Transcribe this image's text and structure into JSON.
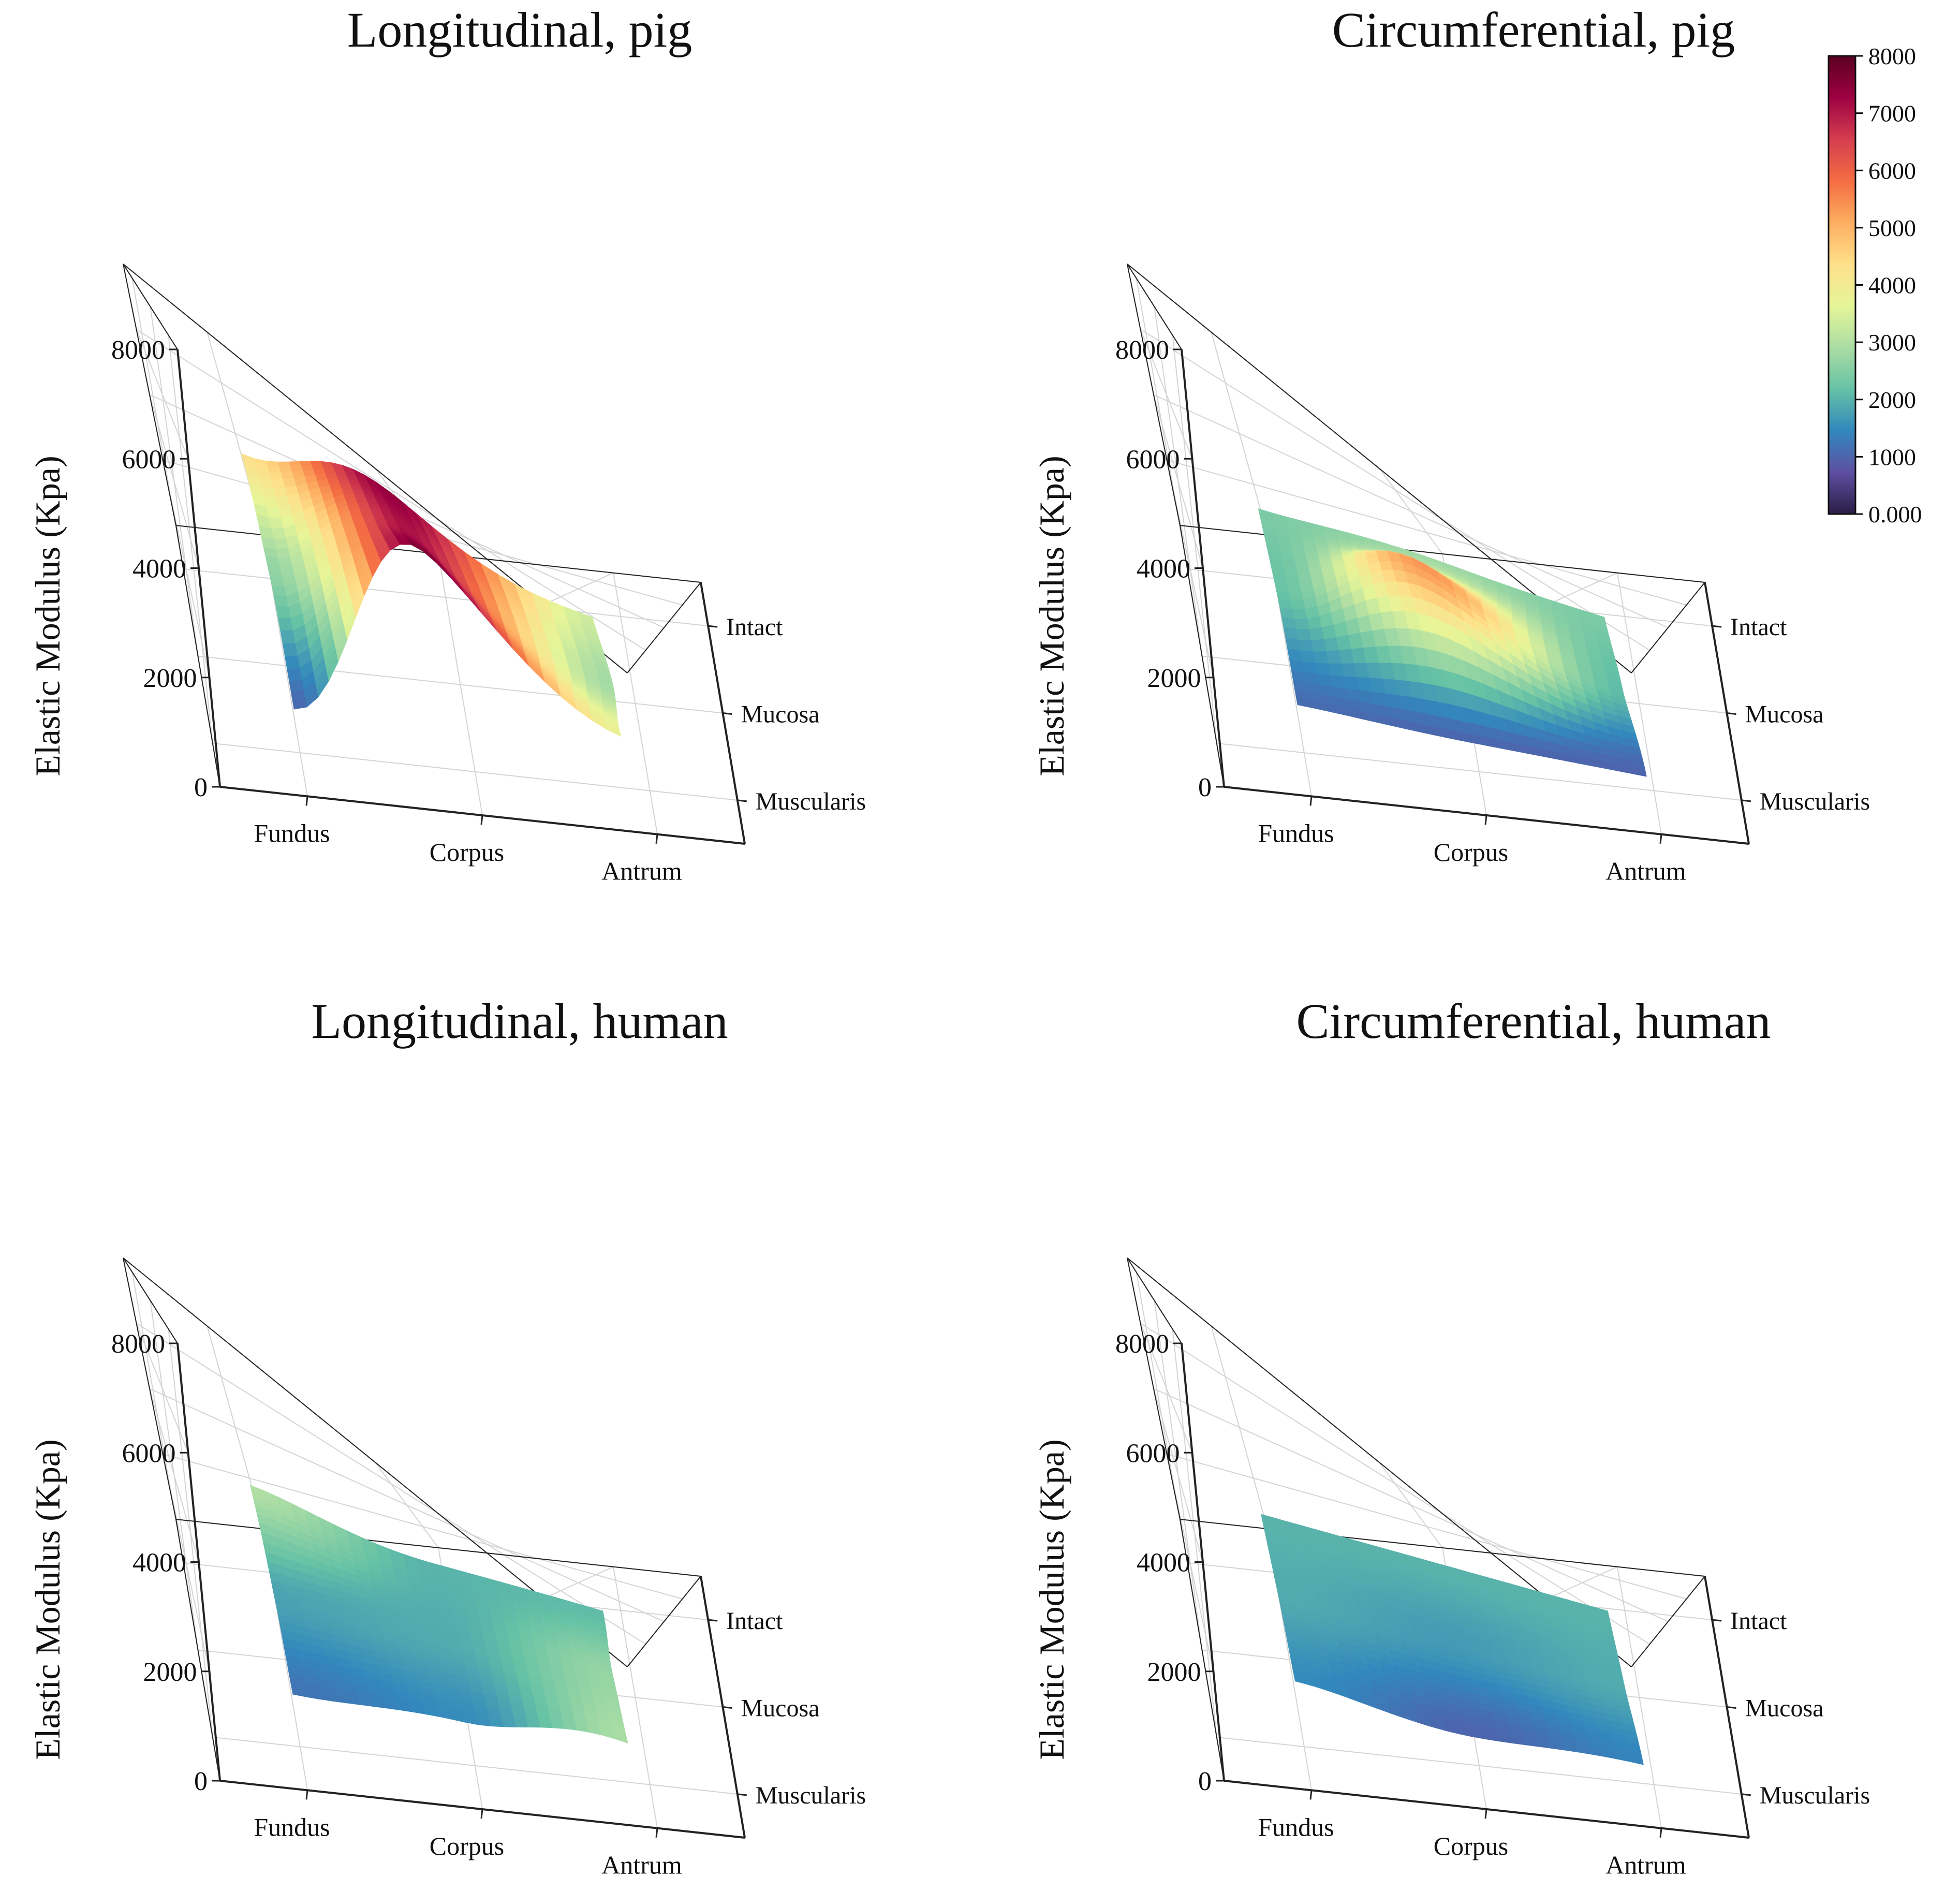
{
  "chart_data": [
    {
      "type": "surface3d",
      "title": "Longitudinal, pig",
      "zlabel": "Elastic Modulus (Kpa)",
      "x_categories": [
        "Fundus",
        "Corpus",
        "Antrum"
      ],
      "y_categories": [
        "Muscularis",
        "Mucosa",
        "Intact"
      ],
      "zticks": [
        "0",
        "2000",
        "4000",
        "6000",
        "8000"
      ],
      "zlim": [
        0,
        8000
      ],
      "surface_z": [
        [
          1000,
          7600,
          3800
        ],
        [
          2600,
          7100,
          2800
        ],
        [
          4300,
          7400,
          3300
        ]
      ]
    },
    {
      "type": "surface3d",
      "title": "Circumferential, pig",
      "zlabel": "Elastic Modulus (Kpa)",
      "x_categories": [
        "Fundus",
        "Corpus",
        "Antrum"
      ],
      "y_categories": [
        "Muscularis",
        "Mucosa",
        "Intact"
      ],
      "zticks": [
        "0",
        "2000",
        "4000",
        "6000",
        "8000"
      ],
      "zlim": [
        0,
        8000
      ],
      "surface_z": [
        [
          1100,
          1000,
          1000
        ],
        [
          2200,
          5400,
          2100
        ],
        [
          2400,
          2800,
          2400
        ]
      ]
    },
    {
      "type": "surface3d",
      "title": "Longitudinal, human",
      "zlabel": "Elastic Modulus (Kpa)",
      "x_categories": [
        "Fundus",
        "Corpus",
        "Antrum"
      ],
      "y_categories": [
        "Muscularis",
        "Mucosa",
        "Intact"
      ],
      "zticks": [
        "0",
        "2000",
        "4000",
        "6000",
        "8000"
      ],
      "zlim": [
        0,
        8000
      ],
      "surface_z": [
        [
          1200,
          1500,
          2900
        ],
        [
          1800,
          1900,
          2700
        ],
        [
          3000,
          2000,
          2100
        ]
      ]
    },
    {
      "type": "surface3d",
      "title": "Circumferential, human",
      "zlabel": "Elastic Modulus (Kpa)",
      "x_categories": [
        "Fundus",
        "Corpus",
        "Antrum"
      ],
      "y_categories": [
        "Muscularis",
        "Mucosa",
        "Intact"
      ],
      "zticks": [
        "0",
        "2000",
        "4000",
        "6000",
        "8000"
      ],
      "zlim": [
        0,
        8000
      ],
      "surface_z": [
        [
          1500,
          1000,
          1400
        ],
        [
          1900,
          1700,
          1900
        ],
        [
          2000,
          2000,
          2000
        ]
      ]
    }
  ],
  "colorbar": {
    "ticks": [
      "0.000",
      "1000",
      "2000",
      "3000",
      "4000",
      "5000",
      "6000",
      "7000",
      "8000"
    ],
    "range": [
      0,
      8000
    ],
    "colormap": "Spectral_r",
    "stops": [
      "#2a1d45",
      "#5e4fa2",
      "#3288bd",
      "#66c2a5",
      "#abdda4",
      "#e6f598",
      "#fee08b",
      "#fdae61",
      "#f46d43",
      "#d53e4f",
      "#9e0142",
      "#5a0020"
    ]
  }
}
